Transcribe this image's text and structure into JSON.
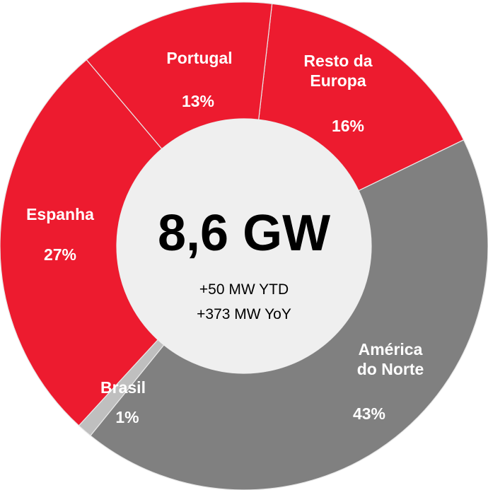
{
  "chart_data": {
    "type": "donut",
    "center_title": "8,6 GW",
    "center_lines": [
      "+50 MW YTD",
      "+373 MW YoY"
    ],
    "categories": [
      "Resto da Europa",
      "América do Norte",
      "Brasil",
      "Espanha",
      "Portugal"
    ],
    "values": [
      16,
      43,
      1,
      27,
      13
    ],
    "value_labels": [
      "16%",
      "43%",
      "1%",
      "27%",
      "13%"
    ],
    "colors": [
      "#ed1b2f",
      "#808080",
      "#bfbfbf",
      "#ed1b2f",
      "#ed1b2f"
    ]
  }
}
